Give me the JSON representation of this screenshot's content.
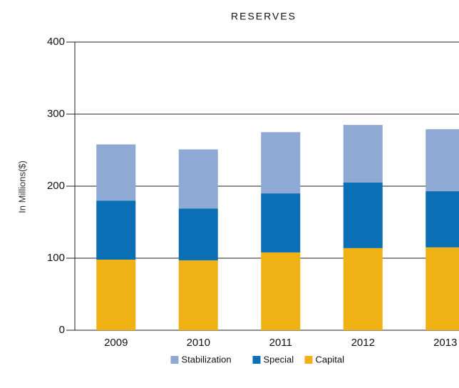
{
  "chart_data": {
    "type": "stacked_bar",
    "title": "RESERVES",
    "y_label": "In Millions($)",
    "categories": [
      "2009",
      "2010",
      "2011",
      "2012",
      "2013"
    ],
    "series": [
      {
        "name": "Capital",
        "color": "#f0b114",
        "values": [
          98,
          97,
          108,
          114,
          115
        ]
      },
      {
        "name": "Special",
        "color": "#0a6fb4",
        "values": [
          82,
          72,
          82,
          91,
          78
        ]
      },
      {
        "name": "Stabilization",
        "color": "#8eaad4",
        "values": [
          78,
          82,
          85,
          80,
          86
        ]
      }
    ],
    "ylim": [
      0,
      400
    ],
    "yticks": [
      0,
      100,
      200,
      300,
      400
    ],
    "grid": true,
    "legend": "bottom"
  }
}
